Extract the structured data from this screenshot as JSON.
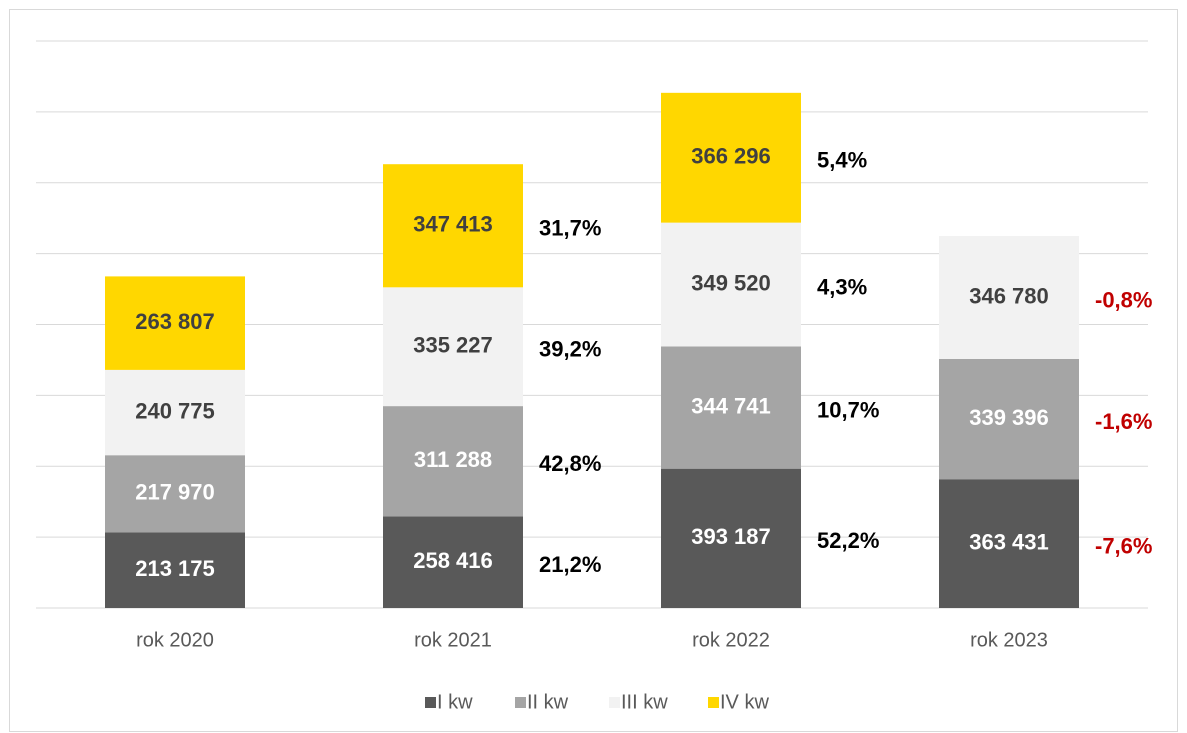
{
  "chart_data": {
    "type": "stacked_bar",
    "categories": [
      "rok 2020",
      "rok 2021",
      "rok 2022",
      "rok 2023"
    ],
    "series": [
      {
        "name": "I kw",
        "color": "#595959",
        "label_color": "#ffffff",
        "values": [
          213175,
          258416,
          393187,
          363431
        ],
        "value_labels": [
          "213 175",
          "258 416",
          "393 187",
          "363 431"
        ],
        "change_labels": [
          null,
          "21,2%",
          "52,2%",
          "-7,6%"
        ]
      },
      {
        "name": "II kw",
        "color": "#a5a5a5",
        "label_color": "#ffffff",
        "values": [
          217970,
          311288,
          344741,
          339396
        ],
        "value_labels": [
          "217 970",
          "311 288",
          "344 741",
          "339 396"
        ],
        "change_labels": [
          null,
          "42,8%",
          "10,7%",
          "-1,6%"
        ]
      },
      {
        "name": "III kw",
        "color": "#f2f2f2",
        "label_color": "#404040",
        "values": [
          240775,
          335227,
          349520,
          346780
        ],
        "value_labels": [
          "240 775",
          "335 227",
          "349 520",
          "346 780"
        ],
        "change_labels": [
          null,
          "39,2%",
          "4,3%",
          "-0,8%"
        ]
      },
      {
        "name": "IV kw",
        "color": "#ffd700",
        "label_color": "#404040",
        "values": [
          263807,
          347413,
          366296,
          null
        ],
        "value_labels": [
          "263 807",
          "347 413",
          "366 296",
          null
        ],
        "change_labels": [
          null,
          "31,7%",
          "5,4%",
          null
        ]
      }
    ],
    "ylim": [
      0,
      1600000
    ],
    "yticks": [
      0,
      200000,
      400000,
      600000,
      800000,
      1000000,
      1200000,
      1400000,
      1600000
    ],
    "grid": true,
    "positive_color": "#000000",
    "negative_color": "#c00000",
    "legend": "bottom"
  }
}
